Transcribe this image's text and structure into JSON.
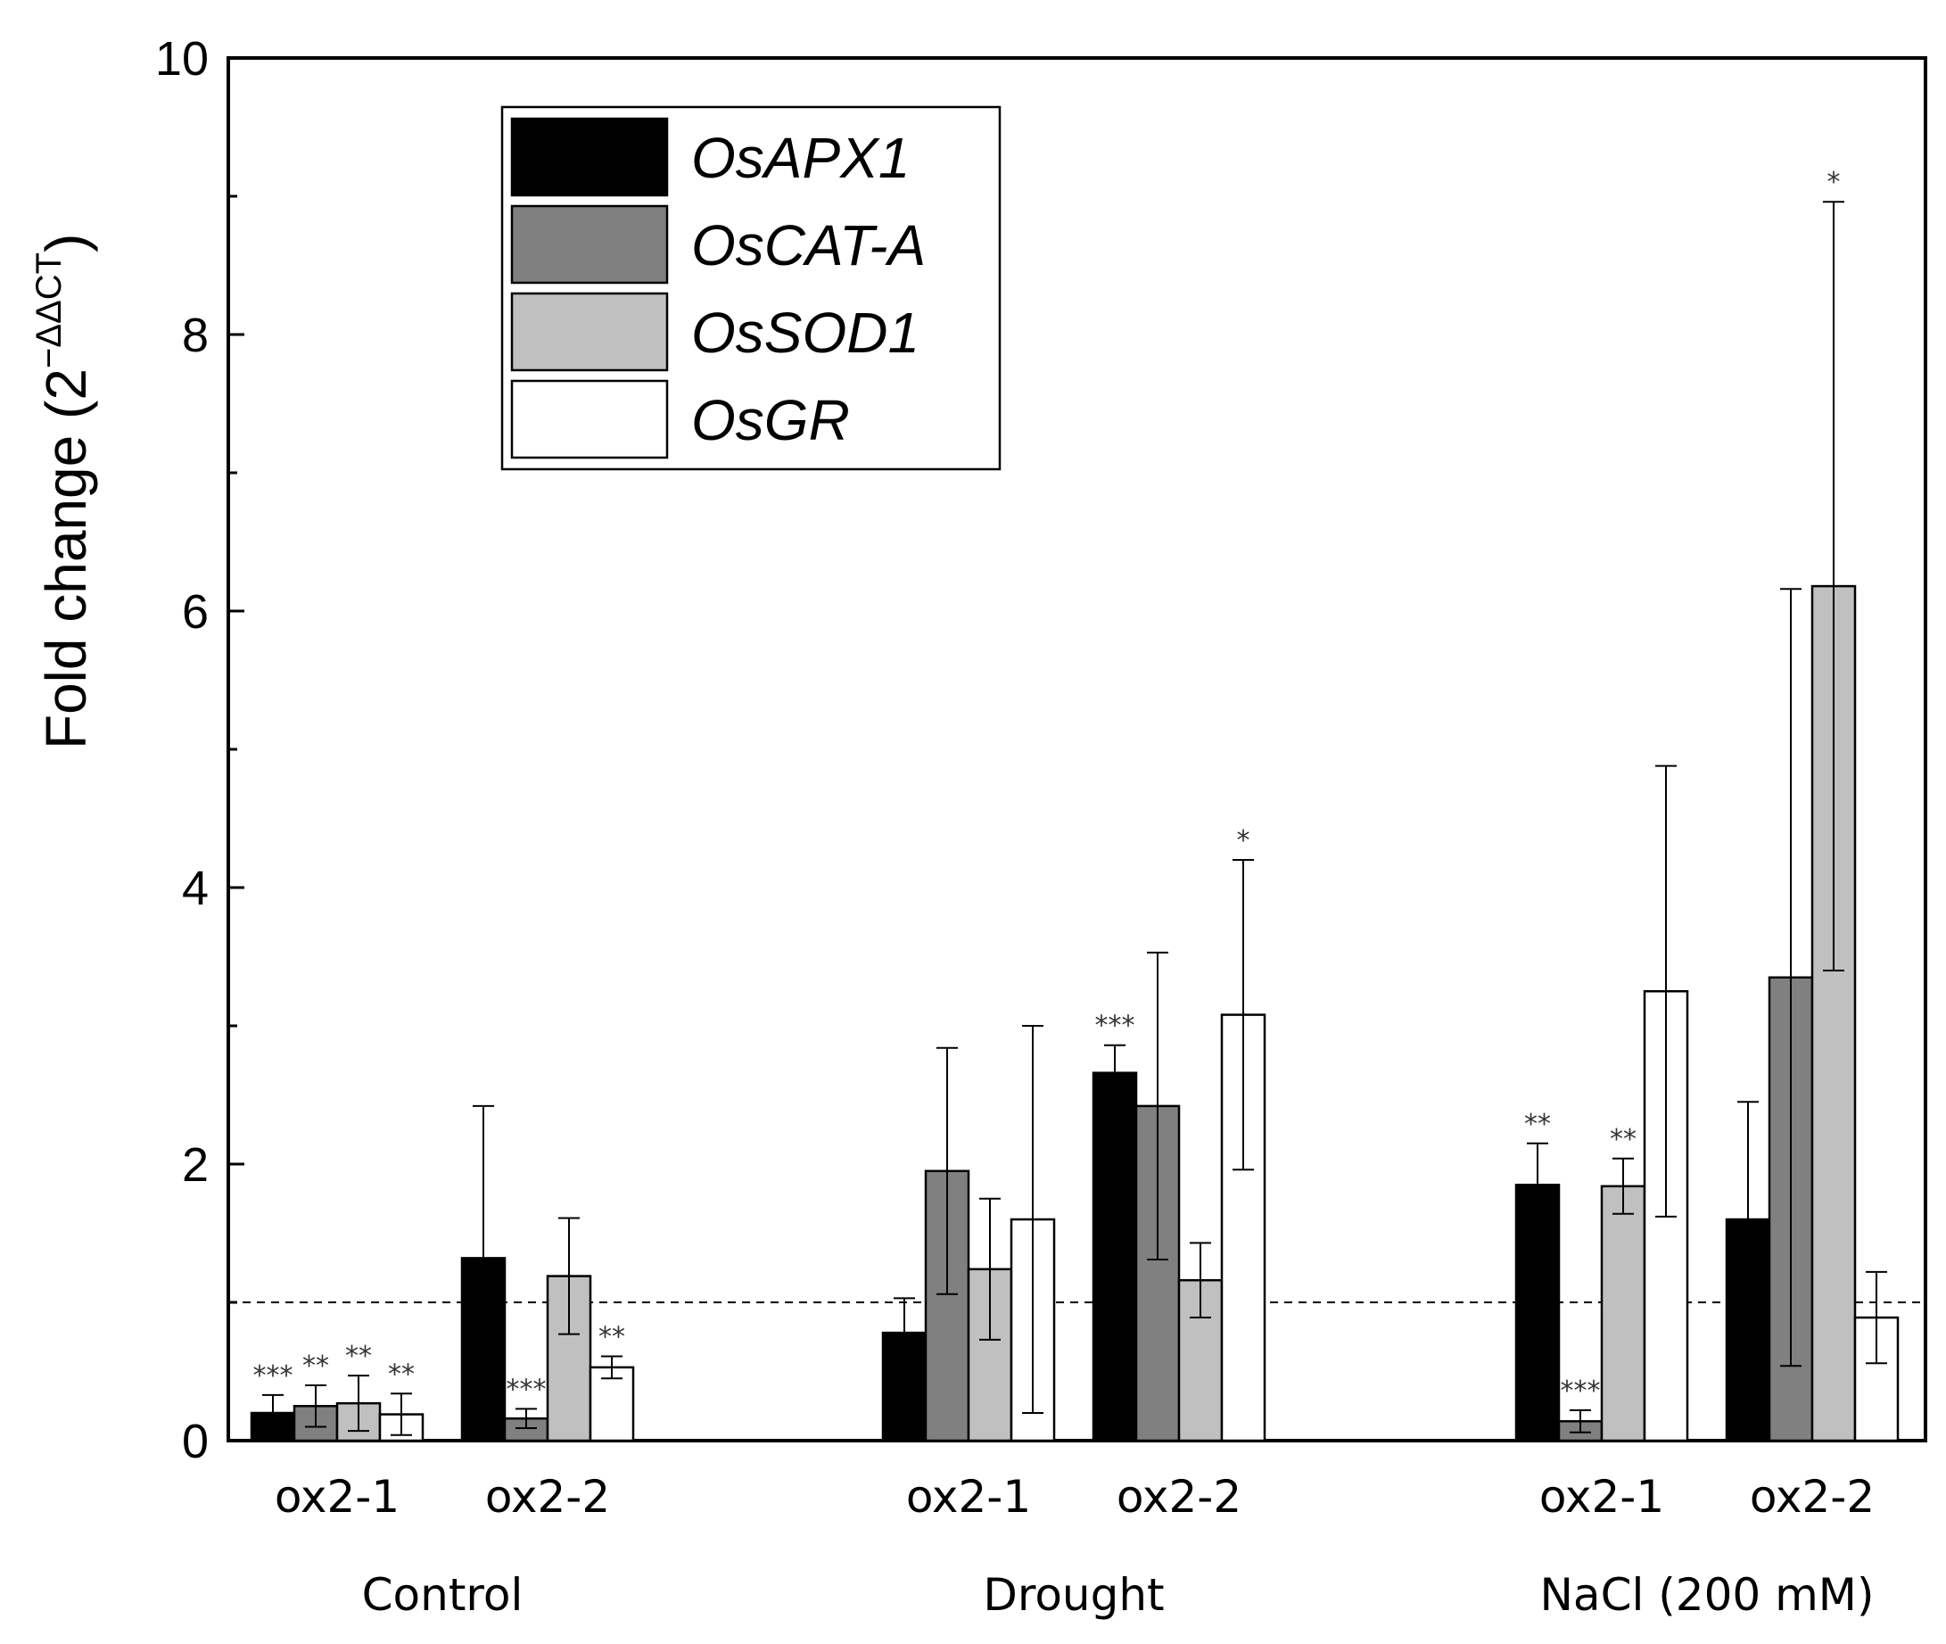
{
  "chart_data": {
    "type": "bar",
    "ylabel_main": "Fold change (2",
    "ylabel_sup": "−ΔΔCT",
    "ylabel_close": ")",
    "ylim": [
      0,
      10
    ],
    "yticks": [
      "0",
      "2",
      "4",
      "6",
      "8",
      "10"
    ],
    "reference_line": 1,
    "groups": [
      {
        "label": "Control",
        "subgroups": [
          "ox2-1",
          "ox2-2"
        ]
      },
      {
        "label": "Drought",
        "subgroups": [
          "ox2-1",
          "ox2-2"
        ]
      },
      {
        "label": "NaCl (200 mM)",
        "subgroups": [
          "ox2-1",
          "ox2-2"
        ]
      }
    ],
    "series": [
      {
        "name": "OsAPX1",
        "color": "#000000",
        "values": [
          0.2,
          1.32,
          0.78,
          2.66,
          1.85,
          1.6
        ],
        "errors": [
          0.13,
          1.1,
          0.25,
          0.2,
          0.3,
          0.85
        ],
        "sig": [
          "***",
          "",
          "",
          "***",
          "**",
          ""
        ]
      },
      {
        "name": "OsCAT-A",
        "color": "#808080",
        "values": [
          0.25,
          0.16,
          1.95,
          2.42,
          0.14,
          3.35
        ],
        "errors": [
          0.15,
          0.07,
          0.89,
          1.11,
          0.08,
          2.81
        ],
        "sig": [
          "**",
          "***",
          "",
          "",
          "***",
          ""
        ]
      },
      {
        "name": "OsSOD1",
        "color": "#c0c0c0",
        "values": [
          0.27,
          1.19,
          1.24,
          1.16,
          1.84,
          6.18
        ],
        "errors": [
          0.2,
          0.42,
          0.51,
          0.27,
          0.2,
          2.78
        ],
        "sig": [
          "**",
          "",
          "",
          "",
          "**",
          "*"
        ]
      },
      {
        "name": "OsGR",
        "color": "#ffffff",
        "values": [
          0.19,
          0.53,
          1.6,
          3.08,
          3.25,
          0.89
        ],
        "errors": [
          0.15,
          0.08,
          1.4,
          1.12,
          1.63,
          0.33
        ],
        "sig": [
          "**",
          "**",
          "",
          "*",
          "",
          ""
        ]
      }
    ]
  }
}
